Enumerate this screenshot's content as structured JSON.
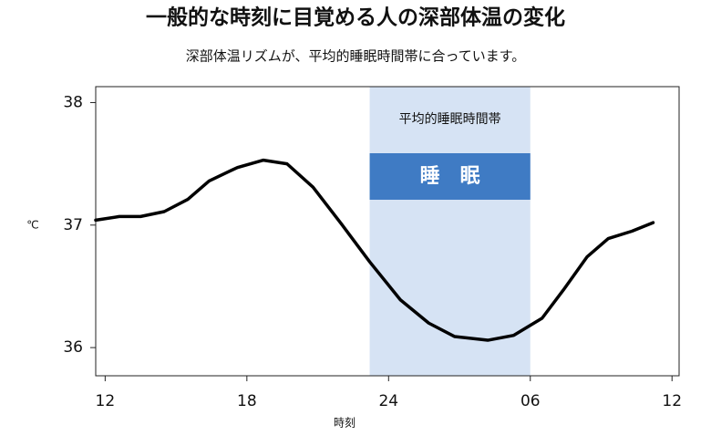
{
  "chart_data": {
    "type": "line",
    "title": "一般的な時刻に目覚める人の深部体温の変化",
    "subtitle": "深部体温リズムが、平均的睡眠時間帯に合っています。",
    "x_label": "時刻",
    "y_label": "℃",
    "x": [
      11.6,
      12.6,
      13.5,
      14.5,
      15.5,
      16.4,
      17.6,
      18.7,
      19.7,
      20.8,
      22.0,
      23.2,
      24.5,
      25.7,
      26.8,
      28.2,
      29.3,
      30.5,
      31.4,
      32.4,
      33.3,
      34.3,
      35.2
    ],
    "values": [
      37.04,
      37.07,
      37.07,
      37.11,
      37.21,
      37.36,
      37.47,
      37.53,
      37.5,
      37.31,
      37.01,
      36.7,
      36.39,
      36.2,
      36.09,
      36.06,
      36.1,
      36.24,
      36.47,
      36.74,
      36.89,
      36.95,
      37.02
    ],
    "color": "#000000",
    "xlim": [
      11.6,
      36.3
    ],
    "ylim": [
      35.77,
      38.13
    ],
    "xticks": [
      12,
      18,
      24,
      {
        "value": 30,
        "label": "06"
      },
      {
        "value": 36,
        "label": "12"
      }
    ],
    "yticks": [
      36,
      37,
      38
    ],
    "band": {
      "from": 23.2,
      "to": 30,
      "color": "#d6e3f4",
      "label": "平均的睡眠時間帯",
      "box_label": "睡　眠",
      "box_color": "#3f7bc4"
    }
  }
}
